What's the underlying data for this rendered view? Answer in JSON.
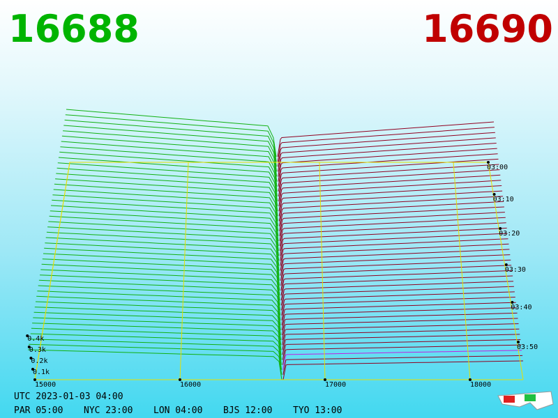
{
  "header": {
    "bid": "16688",
    "ask": "16690"
  },
  "axes": {
    "price_ticks": [
      "15000",
      "16000",
      "17000",
      "18000"
    ],
    "depth_ticks": [
      "0.1k",
      "0.2k",
      "0.3k",
      "0.4k"
    ],
    "time_ticks": [
      "03:00",
      "03:10",
      "03:20",
      "03:30",
      "03:40",
      "03:50"
    ]
  },
  "footer": {
    "utc": "UTC 2023-01-03 04:00",
    "clocks": [
      "PAR 05:00",
      "NYC 23:00",
      "LON 04:00",
      "BJS 12:00",
      "TYO 13:00"
    ]
  }
}
